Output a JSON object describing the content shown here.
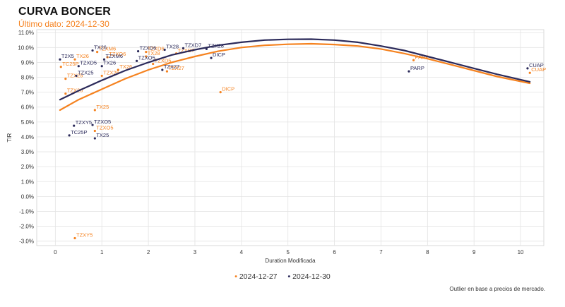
{
  "title": "CURVA BONCER",
  "subtitle": "Último dato: 2024-12-30",
  "footnote": "Outlier en base a precios de mercado.",
  "legend": {
    "series1": "2024-12-27",
    "series2": "2024-12-30"
  },
  "colors": {
    "series1": "#f5821f",
    "series2": "#2b2a5a",
    "grid": "#e3e3e3"
  },
  "chart_data": {
    "type": "scatter",
    "xlabel": "Duration Modificada",
    "ylabel": "TIR",
    "xlim": [
      -0.4,
      10.5
    ],
    "ylim": [
      -3.3,
      11.2
    ],
    "x_ticks": [
      "0",
      "1",
      "2",
      "3",
      "4",
      "5",
      "6",
      "7",
      "8",
      "9",
      "10"
    ],
    "x_tick_values": [
      0,
      1,
      2,
      3,
      4,
      5,
      6,
      7,
      8,
      9,
      10
    ],
    "y_ticks": [
      "11.0%",
      "10.0%",
      "9.0%",
      "8.0%",
      "7.0%",
      "6.0%",
      "5.0%",
      "4.0%",
      "3.0%",
      "2.0%",
      "1.0%",
      "0.0%",
      "-1.0%",
      "-2.0%",
      "-3.0%"
    ],
    "y_tick_values": [
      11,
      10,
      9,
      8,
      7,
      6,
      5,
      4,
      3,
      2,
      1,
      0,
      -1,
      -2,
      -3
    ],
    "grid": true,
    "legend_position": "bottom",
    "series": [
      {
        "name": "2024-12-27",
        "curve": [
          [
            0.1,
            5.8
          ],
          [
            0.5,
            6.5
          ],
          [
            1.0,
            7.2
          ],
          [
            1.5,
            7.9
          ],
          [
            2.0,
            8.5
          ],
          [
            2.5,
            9.0
          ],
          [
            3.0,
            9.4
          ],
          [
            3.5,
            9.75
          ],
          [
            4.0,
            10.0
          ],
          [
            4.5,
            10.15
          ],
          [
            5.0,
            10.22
          ],
          [
            5.5,
            10.25
          ],
          [
            6.0,
            10.2
          ],
          [
            6.5,
            10.1
          ],
          [
            7.0,
            9.9
          ],
          [
            7.5,
            9.6
          ],
          [
            8.0,
            9.25
          ],
          [
            8.5,
            8.85
          ],
          [
            9.0,
            8.45
          ],
          [
            9.5,
            8.05
          ],
          [
            10.2,
            7.6
          ]
        ],
        "points": [
          {
            "label": "TZXY5",
            "x": 0.42,
            "y": -2.8
          },
          {
            "label": "TC25P",
            "x": 0.12,
            "y": 8.7
          },
          {
            "label": "TZX25",
            "x": 0.22,
            "y": 7.9
          },
          {
            "label": "TZX26",
            "x": 0.22,
            "y": 6.9
          },
          {
            "label": "TX25",
            "x": 0.85,
            "y": 5.8
          },
          {
            "label": "TZXO5",
            "x": 0.85,
            "y": 4.4
          },
          {
            "label": "TX26",
            "x": 0.42,
            "y": 9.2
          },
          {
            "label": "TZXM6",
            "x": 0.9,
            "y": 9.7
          },
          {
            "label": "TZX26",
            "x": 1.0,
            "y": 8.1
          },
          {
            "label": "TZXO6",
            "x": 1.12,
            "y": 9.35
          },
          {
            "label": "TX26",
            "x": 1.35,
            "y": 8.5
          },
          {
            "label": "TZXD6",
            "x": 1.95,
            "y": 9.7
          },
          {
            "label": "TX28",
            "x": 1.95,
            "y": 9.4
          },
          {
            "label": "TZXD5",
            "x": 2.1,
            "y": 8.9
          },
          {
            "label": "TZX27",
            "x": 2.4,
            "y": 8.4
          },
          {
            "label": "TZXD7",
            "x": 2.6,
            "y": 9.6
          },
          {
            "label": "DICP",
            "x": 3.55,
            "y": 7.0
          },
          {
            "label": "PARP",
            "x": 7.7,
            "y": 9.15
          },
          {
            "label": "CUAP",
            "x": 10.2,
            "y": 8.3
          }
        ]
      },
      {
        "name": "2024-12-30",
        "curve": [
          [
            0.1,
            6.5
          ],
          [
            0.5,
            7.1
          ],
          [
            1.0,
            7.8
          ],
          [
            1.5,
            8.45
          ],
          [
            2.0,
            9.0
          ],
          [
            2.5,
            9.5
          ],
          [
            3.0,
            9.85
          ],
          [
            3.5,
            10.15
          ],
          [
            4.0,
            10.35
          ],
          [
            4.5,
            10.5
          ],
          [
            5.0,
            10.55
          ],
          [
            5.5,
            10.56
          ],
          [
            6.0,
            10.5
          ],
          [
            6.5,
            10.35
          ],
          [
            7.0,
            10.1
          ],
          [
            7.5,
            9.8
          ],
          [
            8.0,
            9.4
          ],
          [
            8.5,
            9.0
          ],
          [
            9.0,
            8.6
          ],
          [
            9.5,
            8.2
          ],
          [
            10.2,
            7.7
          ]
        ],
        "points": [
          {
            "label": "T2X5",
            "x": 0.1,
            "y": 9.2
          },
          {
            "label": "TC25P",
            "x": 0.3,
            "y": 4.1
          },
          {
            "label": "TZX25",
            "x": 0.45,
            "y": 8.1
          },
          {
            "label": "TZXD5",
            "x": 0.5,
            "y": 8.75
          },
          {
            "label": "TZXY5",
            "x": 0.4,
            "y": 4.75
          },
          {
            "label": "TZXO5",
            "x": 0.8,
            "y": 4.8
          },
          {
            "label": "TX25",
            "x": 0.85,
            "y": 3.9
          },
          {
            "label": "TX26",
            "x": 0.8,
            "y": 9.8
          },
          {
            "label": "TZXM6",
            "x": 1.05,
            "y": 9.2
          },
          {
            "label": "TX26",
            "x": 1.0,
            "y": 8.75
          },
          {
            "label": "TZXD6",
            "x": 1.78,
            "y": 9.75
          },
          {
            "label": "TZXO5",
            "x": 1.75,
            "y": 9.1
          },
          {
            "label": "TZX27",
            "x": 2.3,
            "y": 8.5
          },
          {
            "label": "TX28",
            "x": 2.35,
            "y": 9.85
          },
          {
            "label": "TZXD7",
            "x": 2.75,
            "y": 9.95
          },
          {
            "label": "TZX28",
            "x": 3.25,
            "y": 9.9
          },
          {
            "label": "DICP",
            "x": 3.35,
            "y": 9.3
          },
          {
            "label": "PARP",
            "x": 7.6,
            "y": 8.4
          },
          {
            "label": "CUAP",
            "x": 10.15,
            "y": 8.6
          }
        ]
      }
    ]
  }
}
